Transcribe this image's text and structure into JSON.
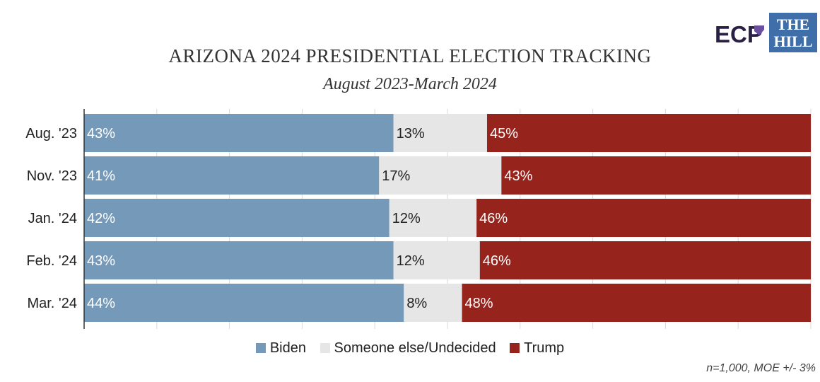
{
  "chart_data": {
    "type": "bar",
    "orientation": "horizontal",
    "stacked": true,
    "title": "ARIZONA 2024 PRESIDENTIAL ELECTION TRACKING",
    "subtitle": "August 2023-March 2024",
    "categories": [
      "Aug. '23",
      "Nov. '23",
      "Jan. '24",
      "Feb. '24",
      "Mar. '24"
    ],
    "series": [
      {
        "name": "Biden",
        "values": [
          43,
          41,
          42,
          43,
          44
        ],
        "labels": [
          "43%",
          "41%",
          "42%",
          "43%",
          "44%"
        ],
        "color": "#7599b8"
      },
      {
        "name": "Someone else/Undecided",
        "values": [
          13,
          17,
          12,
          12,
          8
        ],
        "labels": [
          "13%",
          "17%",
          "12%",
          "12%",
          "8%"
        ],
        "color": "#e6e6e6"
      },
      {
        "name": "Trump",
        "values": [
          45,
          43,
          46,
          46,
          48
        ],
        "labels": [
          "45%",
          "43%",
          "46%",
          "46%",
          "48%"
        ],
        "color": "#96231c"
      }
    ],
    "grid": true,
    "legend_position": "bottom",
    "note": "n=1,000, MOE +/- 3%"
  },
  "logos": {
    "ecp": {
      "text": "ECP",
      "color": "#2a1f44",
      "accent": "#6a4fa0"
    },
    "the_hill": {
      "line1": "THE",
      "line2": "HILL",
      "color": "#3f6ea8"
    }
  }
}
